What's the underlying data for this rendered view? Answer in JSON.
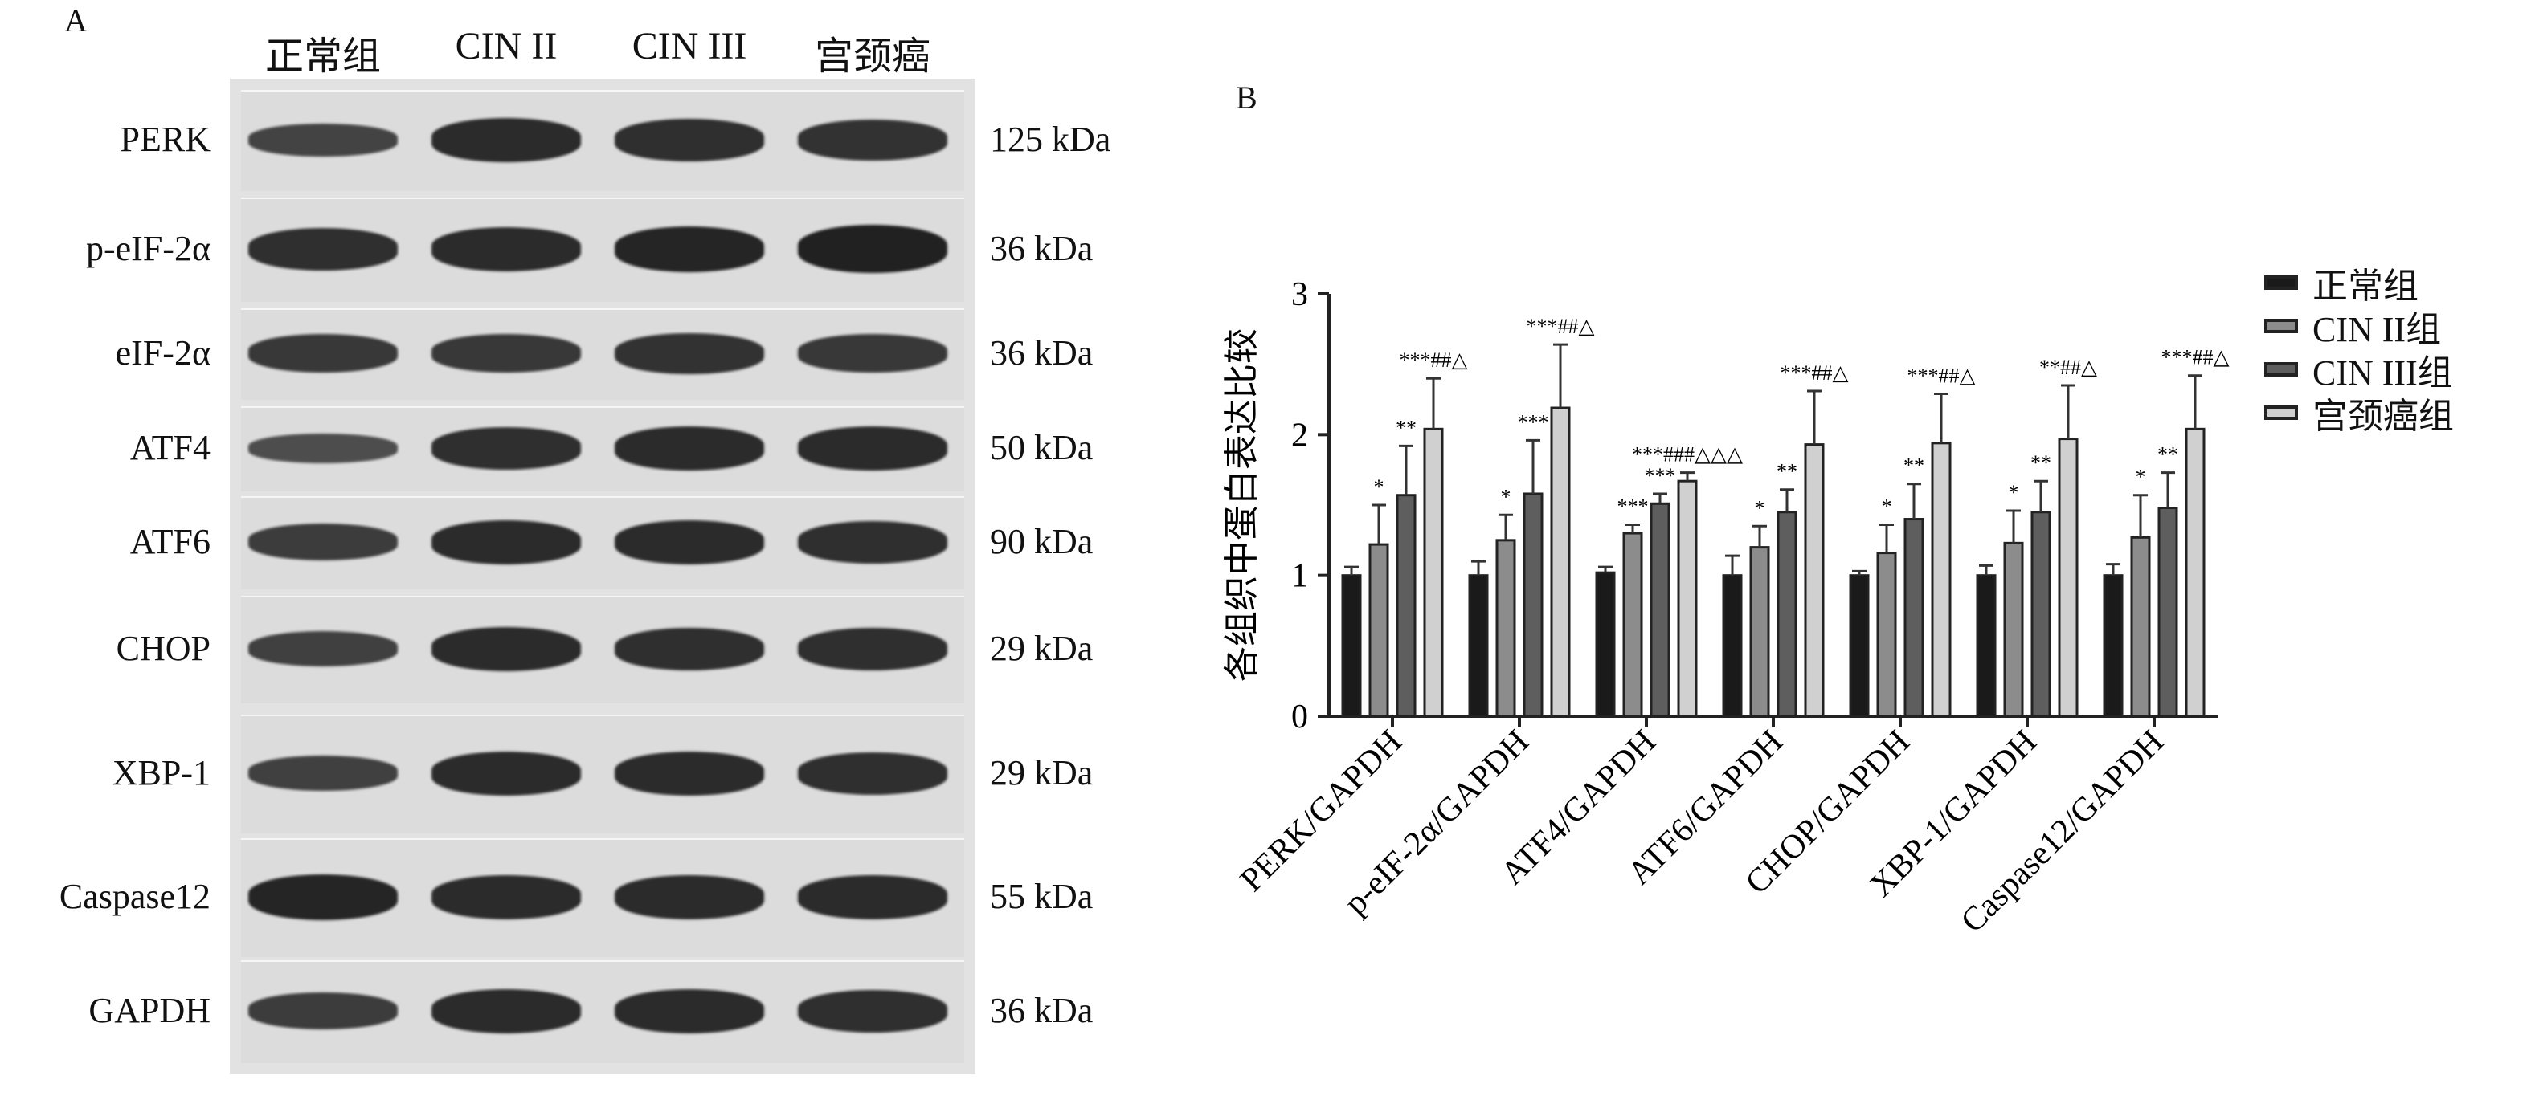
{
  "panel_a": {
    "letter": "A",
    "lane_headers": [
      "正常组",
      "CIN II",
      "CIN III",
      "宫颈癌"
    ],
    "rows": [
      {
        "protein": "PERK",
        "mw": "125 kDa",
        "bands": [
          0.55,
          0.85,
          0.8,
          0.75
        ]
      },
      {
        "protein": "p-eIF-2α",
        "mw": "36 kDa",
        "bands": [
          0.8,
          0.85,
          0.9,
          0.95
        ]
      },
      {
        "protein": "eIF-2α",
        "mw": "36 kDa",
        "bands": [
          0.7,
          0.7,
          0.75,
          0.7
        ]
      },
      {
        "protein": "ATF4",
        "mw": "50 kDa",
        "bands": [
          0.45,
          0.8,
          0.85,
          0.85
        ]
      },
      {
        "protein": "ATF6",
        "mw": "90 kDa",
        "bands": [
          0.65,
          0.85,
          0.85,
          0.8
        ]
      },
      {
        "protein": "CHOP",
        "mw": "29 kDa",
        "bands": [
          0.6,
          0.85,
          0.8,
          0.8
        ]
      },
      {
        "protein": "XBP-1",
        "mw": "29 kDa",
        "bands": [
          0.6,
          0.85,
          0.85,
          0.8
        ]
      },
      {
        "protein": "Caspase12",
        "mw": "55 kDa",
        "bands": [
          0.9,
          0.85,
          0.85,
          0.85
        ]
      },
      {
        "protein": "GAPDH",
        "mw": "36 kDa",
        "bands": [
          0.65,
          0.85,
          0.85,
          0.8
        ]
      }
    ]
  },
  "panel_b": {
    "letter": "B"
  },
  "chart_data": {
    "type": "bar",
    "ylabel": "各组织中蛋白表达比较",
    "xlabel": "",
    "ylim": [
      0,
      3
    ],
    "yticks": [
      0,
      1,
      2,
      3
    ],
    "categories": [
      "PERK/GAPDH",
      "p-eIF-2α/GAPDH",
      "ATF4/GAPDH",
      "ATF6/GAPDH",
      "CHOP/GAPDH",
      "XBP-1/GAPDH",
      "Caspase12/GAPDH"
    ],
    "series": [
      {
        "name": "正常组",
        "color": "#1a1a1a",
        "values": [
          1.0,
          1.0,
          1.02,
          1.0,
          1.0,
          1.0,
          1.0
        ],
        "errors": [
          0.06,
          0.1,
          0.04,
          0.14,
          0.03,
          0.07,
          0.08
        ],
        "annotations": [
          "",
          "",
          "",
          "",
          "",
          "",
          ""
        ]
      },
      {
        "name": "CIN II组",
        "color": "#8c8c8c",
        "values": [
          1.22,
          1.25,
          1.3,
          1.2,
          1.16,
          1.23,
          1.27
        ],
        "errors": [
          0.28,
          0.18,
          0.06,
          0.15,
          0.2,
          0.23,
          0.3
        ],
        "annotations": [
          "*",
          "*",
          "***",
          "*",
          "*",
          "*",
          "*"
        ]
      },
      {
        "name": "CIN III组",
        "color": "#5e5e5e",
        "values": [
          1.57,
          1.58,
          1.51,
          1.45,
          1.4,
          1.45,
          1.48
        ],
        "errors": [
          0.35,
          0.38,
          0.07,
          0.16,
          0.25,
          0.22,
          0.25
        ],
        "annotations": [
          "**",
          "***",
          "***",
          "**",
          "**",
          "**",
          "**"
        ]
      },
      {
        "name": "宫颈癌组",
        "color": "#d0d0d0",
        "values": [
          2.04,
          2.19,
          1.67,
          1.93,
          1.94,
          1.97,
          2.04
        ],
        "errors": [
          0.36,
          0.45,
          0.06,
          0.38,
          0.35,
          0.38,
          0.38
        ],
        "annotations": [
          "***##△",
          "***##△",
          "***###△△△",
          "***##△",
          "***##△",
          "**##△",
          "***##△"
        ]
      }
    ],
    "legend_position": "top-right",
    "grid": false
  }
}
